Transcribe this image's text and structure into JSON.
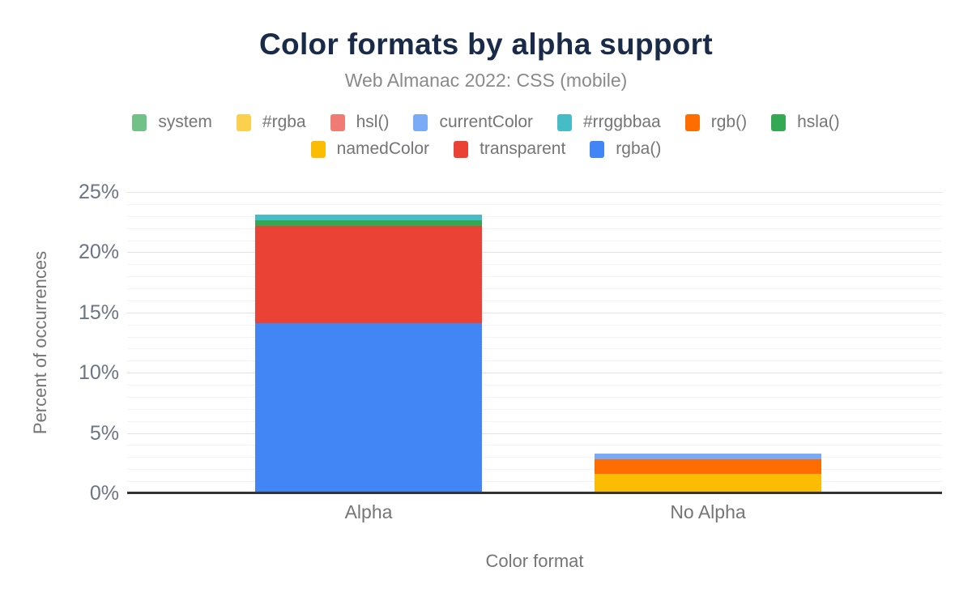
{
  "chart_data": {
    "type": "bar",
    "stacked": true,
    "title": "Color formats by alpha support",
    "subtitle": "Web Almanac 2022: CSS (mobile)",
    "xlabel": "Color format",
    "ylabel": "Percent of occurrences",
    "categories": [
      "Alpha",
      "No Alpha"
    ],
    "ylim": [
      0,
      25
    ],
    "y_ticks": [
      "0%",
      "5%",
      "10%",
      "15%",
      "20%",
      "25%"
    ],
    "y_unit": "%",
    "grid": true,
    "legend_position": "top",
    "stack_order": "bottom-to-top is reverse of series list",
    "series": [
      {
        "name": "system",
        "color": "#71C287",
        "values": [
          0,
          0
        ]
      },
      {
        "name": "#rgba",
        "color": "#FCD04F",
        "values": [
          0,
          0
        ]
      },
      {
        "name": "hsl()",
        "color": "#F07B72",
        "values": [
          0,
          0
        ]
      },
      {
        "name": "currentColor",
        "color": "#7BAAF7",
        "values": [
          0,
          0.5
        ]
      },
      {
        "name": "#rrggbbaa",
        "color": "#46BDC6",
        "values": [
          0.45,
          0
        ]
      },
      {
        "name": "rgb()",
        "color": "#FF6D01",
        "values": [
          0,
          1.2
        ]
      },
      {
        "name": "hsla()",
        "color": "#34A853",
        "values": [
          0.45,
          0
        ]
      },
      {
        "name": "namedColor",
        "color": "#FBBC04",
        "values": [
          0,
          1.6
        ]
      },
      {
        "name": "transparent",
        "color": "#EA4335",
        "values": [
          8.1,
          0
        ]
      },
      {
        "name": "rgba()",
        "color": "#4285F4",
        "values": [
          14.1,
          0
        ]
      }
    ],
    "totals": {
      "Alpha": 23.1,
      "No Alpha": 3.3
    }
  },
  "colors": {
    "title_text": "#1a2b49",
    "secondary_text": "#757575",
    "tick_text": "#6c7584",
    "axis_baseline": "#333333",
    "grid_major": "#e3e3e3",
    "grid_minor": "#f4f4f4",
    "background": "#ffffff"
  }
}
